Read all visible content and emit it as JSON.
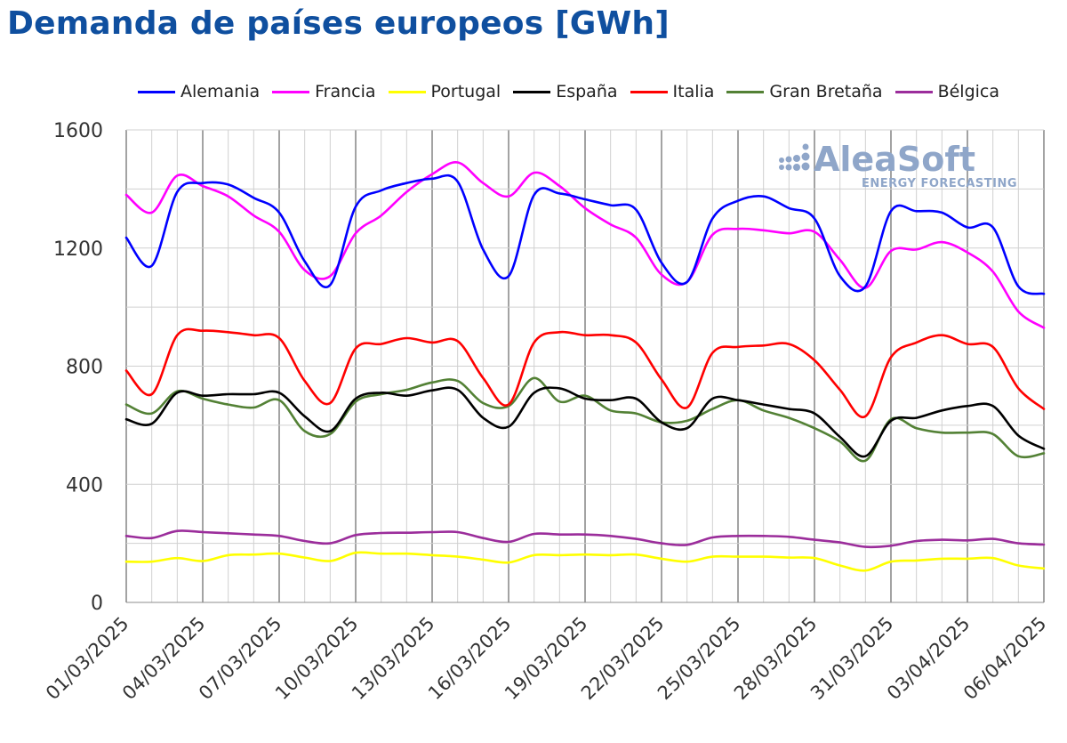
{
  "title": "Demanda de países europeos [GWh]",
  "watermark": {
    "brand": "AleaSoft",
    "tagline": "ENERGY FORECASTING",
    "color": "#8fa6c9"
  },
  "chart_data": {
    "type": "line",
    "title": "Demanda de países europeos [GWh]",
    "xlabel": "",
    "ylabel": "",
    "ylim": [
      0,
      1600
    ],
    "yticks": [
      0,
      400,
      800,
      1200,
      1600
    ],
    "grid": true,
    "legend_position": "top",
    "x": [
      "01/03/2025",
      "02/03/2025",
      "03/03/2025",
      "04/03/2025",
      "05/03/2025",
      "06/03/2025",
      "07/03/2025",
      "08/03/2025",
      "09/03/2025",
      "10/03/2025",
      "11/03/2025",
      "12/03/2025",
      "13/03/2025",
      "14/03/2025",
      "15/03/2025",
      "16/03/2025",
      "17/03/2025",
      "18/03/2025",
      "19/03/2025",
      "20/03/2025",
      "21/03/2025",
      "22/03/2025",
      "23/03/2025",
      "24/03/2025",
      "25/03/2025",
      "26/03/2025",
      "27/03/2025",
      "28/03/2025",
      "29/03/2025",
      "30/03/2025",
      "31/03/2025",
      "01/04/2025",
      "02/04/2025",
      "03/04/2025",
      "04/04/2025",
      "05/04/2025",
      "06/04/2025"
    ],
    "xtick_labels": [
      "01/03/2025",
      "04/03/2025",
      "07/03/2025",
      "10/03/2025",
      "13/03/2025",
      "16/03/2025",
      "19/03/2025",
      "22/03/2025",
      "25/03/2025",
      "28/03/2025",
      "31/03/2025",
      "03/04/2025",
      "06/04/2025"
    ],
    "series": [
      {
        "name": "Alemania",
        "color": "#0000ff",
        "values": [
          1235,
          1140,
          1390,
          1420,
          1415,
          1370,
          1320,
          1155,
          1075,
          1340,
          1395,
          1420,
          1435,
          1425,
          1195,
          1105,
          1380,
          1385,
          1365,
          1345,
          1330,
          1150,
          1085,
          1300,
          1360,
          1375,
          1335,
          1300,
          1105,
          1070,
          1325,
          1325,
          1320,
          1270,
          1270,
          1070,
          1045
        ]
      },
      {
        "name": "Francia",
        "color": "#ff00ff",
        "values": [
          1380,
          1320,
          1445,
          1410,
          1375,
          1310,
          1255,
          1125,
          1105,
          1250,
          1310,
          1390,
          1450,
          1490,
          1420,
          1375,
          1455,
          1410,
          1335,
          1280,
          1235,
          1110,
          1085,
          1245,
          1265,
          1260,
          1250,
          1255,
          1160,
          1065,
          1190,
          1195,
          1220,
          1185,
          1120,
          985,
          930
        ]
      },
      {
        "name": "Portugal",
        "color": "#ffff00",
        "values": [
          138,
          138,
          150,
          140,
          160,
          162,
          165,
          152,
          140,
          168,
          165,
          165,
          160,
          155,
          145,
          135,
          160,
          160,
          162,
          160,
          162,
          148,
          138,
          155,
          155,
          155,
          152,
          150,
          125,
          108,
          138,
          142,
          148,
          148,
          150,
          125,
          115
        ]
      },
      {
        "name": "España",
        "color": "#000000",
        "values": [
          620,
          605,
          710,
          700,
          705,
          705,
          710,
          630,
          580,
          690,
          710,
          700,
          718,
          720,
          625,
          595,
          710,
          725,
          690,
          685,
          690,
          610,
          590,
          690,
          685,
          670,
          655,
          640,
          560,
          495,
          615,
          625,
          650,
          665,
          665,
          565,
          520
        ]
      },
      {
        "name": "Italia",
        "color": "#ff0000",
        "values": [
          785,
          705,
          905,
          920,
          915,
          905,
          895,
          750,
          675,
          860,
          875,
          895,
          880,
          885,
          760,
          670,
          880,
          915,
          905,
          905,
          880,
          755,
          660,
          845,
          865,
          870,
          875,
          820,
          720,
          630,
          830,
          880,
          905,
          875,
          865,
          725,
          655
        ]
      },
      {
        "name": "Gran Bretaña",
        "color": "#538135",
        "values": [
          670,
          640,
          715,
          690,
          670,
          660,
          685,
          580,
          570,
          680,
          705,
          720,
          745,
          750,
          675,
          665,
          760,
          680,
          700,
          650,
          640,
          610,
          615,
          655,
          685,
          650,
          625,
          590,
          545,
          480,
          620,
          590,
          575,
          575,
          570,
          495,
          505
        ]
      },
      {
        "name": "Bélgica",
        "color": "#9b2d9b",
        "values": [
          225,
          218,
          242,
          238,
          234,
          230,
          225,
          208,
          200,
          228,
          235,
          236,
          238,
          238,
          218,
          205,
          232,
          230,
          230,
          225,
          215,
          200,
          195,
          220,
          225,
          225,
          222,
          212,
          203,
          188,
          192,
          208,
          212,
          210,
          215,
          200,
          196
        ]
      }
    ]
  }
}
